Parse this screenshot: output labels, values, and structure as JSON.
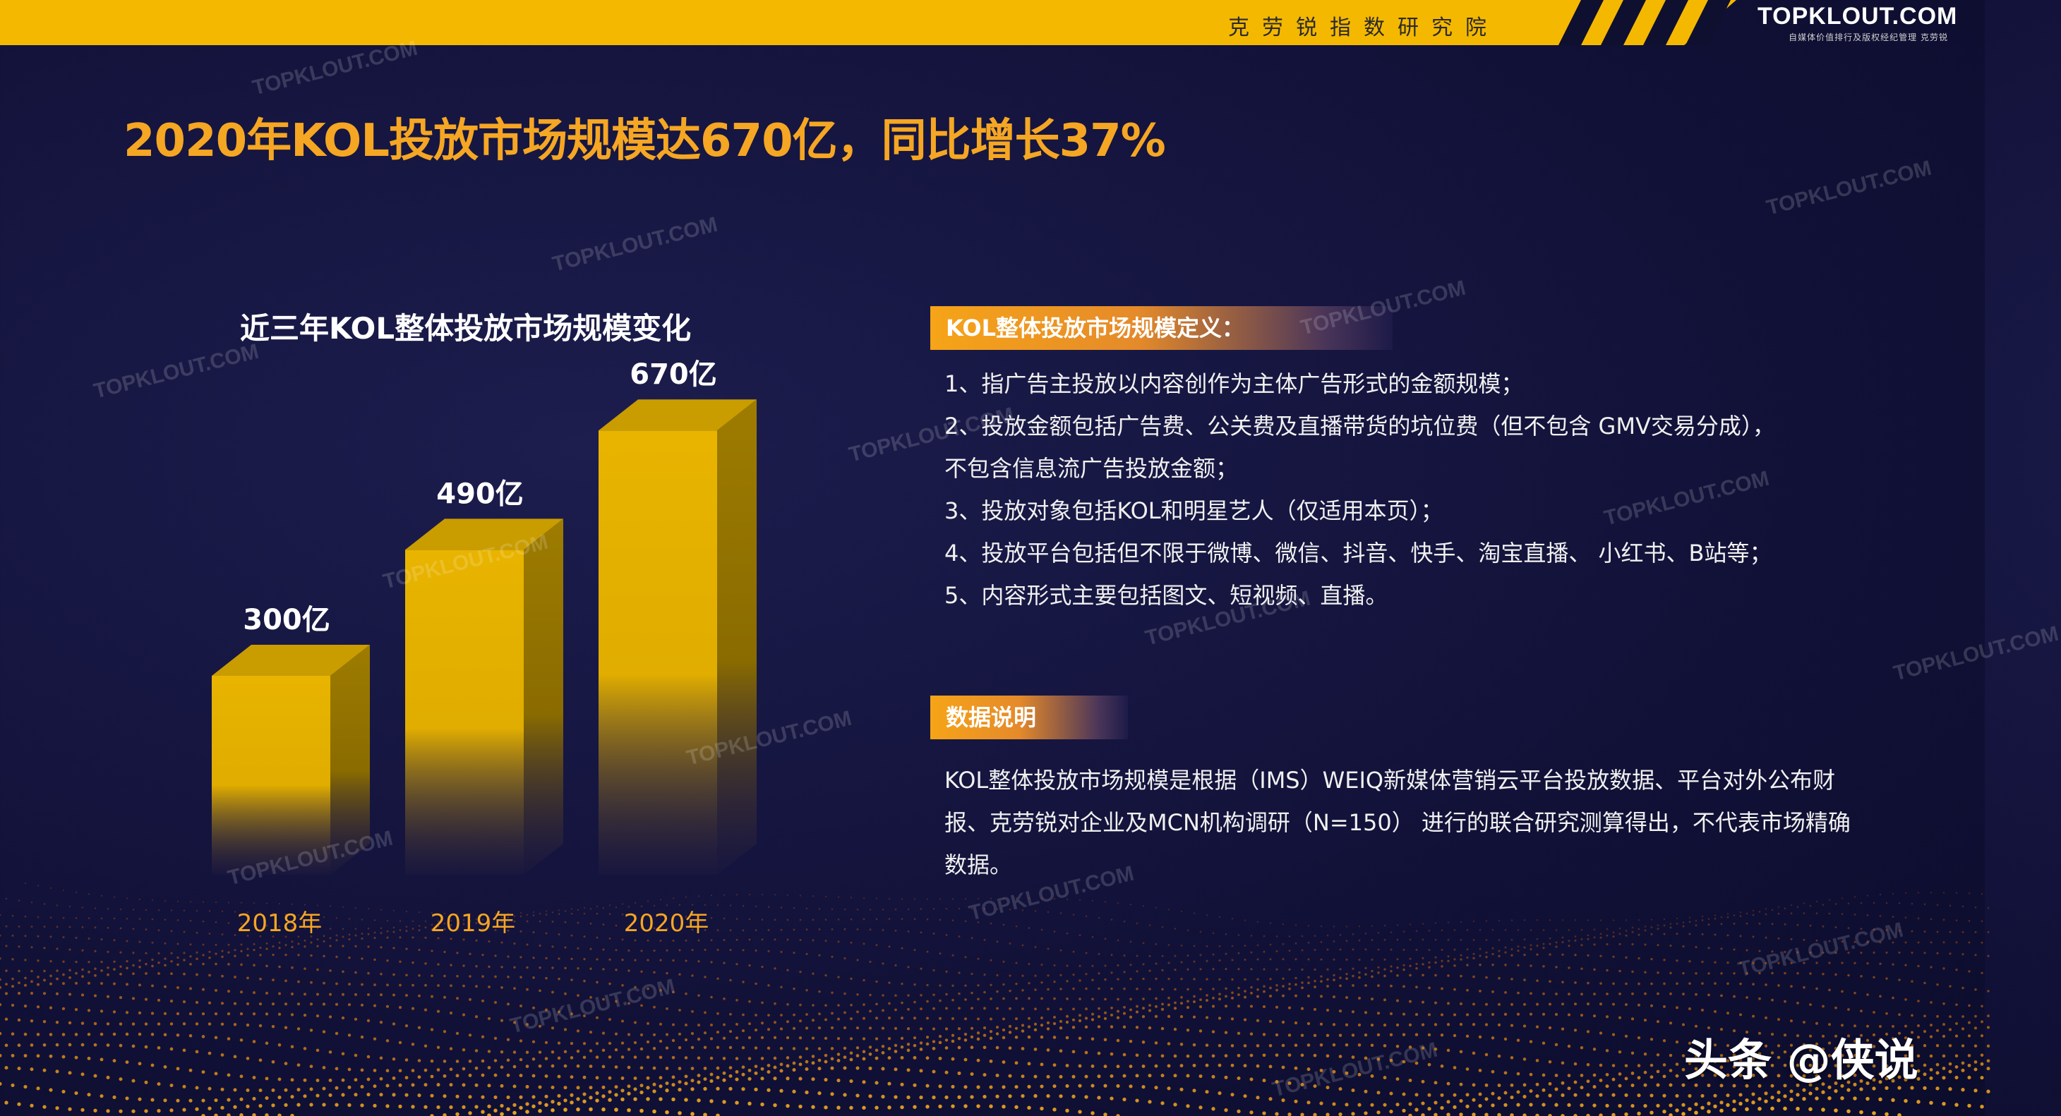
{
  "header": {
    "institute": "克劳锐指数研究院",
    "brand": "TOPKLOUT.COM",
    "brand_sub": "自媒体价值排行及版权经纪管理 克劳锐"
  },
  "page_title": "2020年KOL投放市场规模达670亿，同比增长37%",
  "colors": {
    "background": "#12123a",
    "accent_yellow": "#f5b800",
    "title_orange": "#f5a623",
    "bar_front": "#e3b000",
    "bar_side": "#9c7a00",
    "bar_top": "#c99c00"
  },
  "chart_data": {
    "type": "bar",
    "title": "近三年KOL整体投放市场规模变化",
    "categories": [
      "2018年",
      "2019年",
      "2020年"
    ],
    "values": [
      300,
      490,
      670
    ],
    "data_labels": [
      "300亿",
      "490亿",
      "670亿"
    ],
    "ylim": [
      0,
      700
    ],
    "grid": false,
    "style": "3d-column"
  },
  "definition": {
    "tag": "KOL整体投放市场规模定义：",
    "lines": [
      "1、指广告主投放以内容创作为主体广告形式的金额规模；",
      "2、投放金额包括广告费、公关费及直播带货的坑位费（但不包含 GMV交易分成），",
      "不包含信息流广告投放金额；",
      "3、投放对象包括KOL和明星艺人（仅适用本页）；",
      "4、投放平台包括但不限于微博、微信、抖音、快手、淘宝直播、 小红书、B站等；",
      "5、内容形式主要包括图文、短视频、直播。"
    ]
  },
  "data_note": {
    "tag": "数据说明",
    "text": "KOL整体投放市场规模是根据（IMS）WEIQ新媒体营销云平台投放数据、平台对外公布财报、克劳锐对企业及MCN机构调研（N=150） 进行的联合研究测算得出，不代表市场精确数据。"
  },
  "watermark": "TOPKLOUT.COM",
  "footer_credit": "头条 @侠说"
}
